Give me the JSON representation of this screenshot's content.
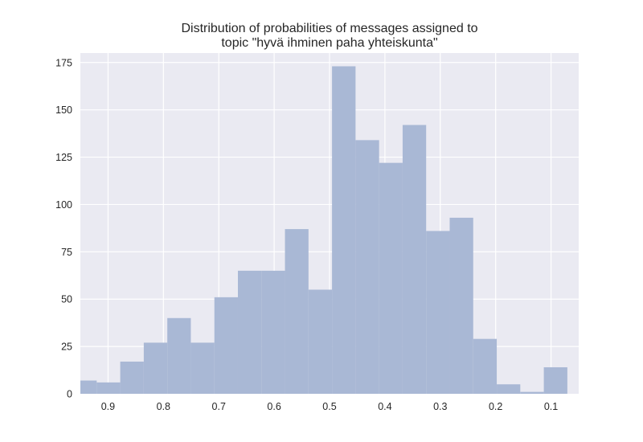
{
  "chart_data": {
    "type": "bar",
    "title_lines": [
      "Distribution of probabilities of messages assigned to",
      "topic \"hyvä ihminen paha yhteiskunta\""
    ],
    "xlabel": "",
    "ylabel": "",
    "x_reversed": true,
    "xlim": [
      0.95,
      0.05
    ],
    "ylim": [
      0,
      180
    ],
    "x_ticks": [
      0.9,
      0.8,
      0.7,
      0.6,
      0.5,
      0.4,
      0.3,
      0.2,
      0.1
    ],
    "x_tick_labels": [
      "0.9",
      "0.8",
      "0.7",
      "0.6",
      "0.5",
      "0.4",
      "0.3",
      "0.2",
      "0.1"
    ],
    "y_ticks": [
      0,
      25,
      50,
      75,
      100,
      125,
      150,
      175
    ],
    "y_tick_labels": [
      "0",
      "25",
      "50",
      "75",
      "100",
      "125",
      "150",
      "175"
    ],
    "bin_edges": [
      0.963,
      0.9205,
      0.878,
      0.8355,
      0.793,
      0.7505,
      0.708,
      0.6655,
      0.623,
      0.5805,
      0.538,
      0.4955,
      0.453,
      0.4105,
      0.368,
      0.3255,
      0.283,
      0.2405,
      0.198,
      0.1555,
      0.113,
      0.0705
    ],
    "values": [
      7,
      6,
      17,
      27,
      40,
      27,
      51,
      65,
      65,
      87,
      55,
      173,
      134,
      122,
      142,
      86,
      93,
      29,
      5,
      1,
      14
    ],
    "grid": true,
    "colors": {
      "background": "#eaeaf2",
      "bar": "#a9b8d5",
      "grid": "#ffffff",
      "text": "#262626"
    }
  }
}
